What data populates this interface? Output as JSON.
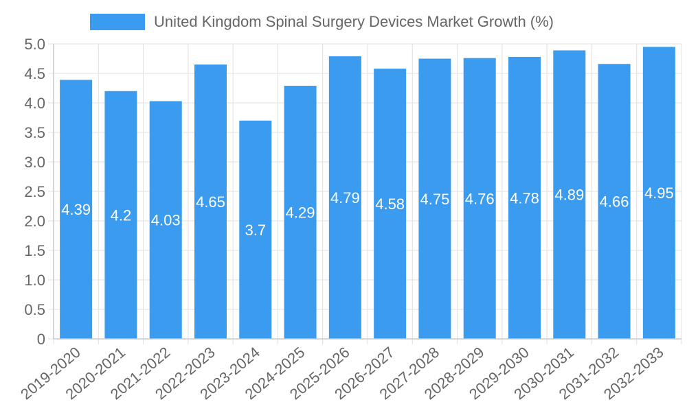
{
  "chart_data": {
    "type": "bar",
    "title": "",
    "legend": [
      {
        "name": "United Kingdom Spinal Surgery Devices Market Growth (%)",
        "color": "#3b9bef"
      }
    ],
    "legend_position": "top-center",
    "categories": [
      "2019-2020",
      "2020-2021",
      "2021-2022",
      "2022-2023",
      "2023-2024",
      "2024-2025",
      "2025-2026",
      "2026-2027",
      "2027-2028",
      "2028-2029",
      "2029-2030",
      "2030-2031",
      "2031-2032",
      "2032-2033"
    ],
    "series": [
      {
        "name": "United Kingdom Spinal Surgery Devices Market Growth (%)",
        "values": [
          4.39,
          4.2,
          4.03,
          4.65,
          3.7,
          4.29,
          4.79,
          4.58,
          4.75,
          4.76,
          4.78,
          4.89,
          4.66,
          4.95
        ],
        "color": "#3b9bef"
      }
    ],
    "data_labels": [
      "4.39",
      "4.2",
      "4.03",
      "4.65",
      "3.7",
      "4.29",
      "4.79",
      "4.58",
      "4.75",
      "4.76",
      "4.78",
      "4.89",
      "4.66",
      "4.95"
    ],
    "y_ticks": [
      "0",
      "0.5",
      "1.0",
      "1.5",
      "2.0",
      "2.5",
      "3.0",
      "3.5",
      "4.0",
      "4.5",
      "5.0"
    ],
    "ylim": [
      0,
      5
    ],
    "xlabel": "",
    "ylabel": "",
    "grid": true
  }
}
